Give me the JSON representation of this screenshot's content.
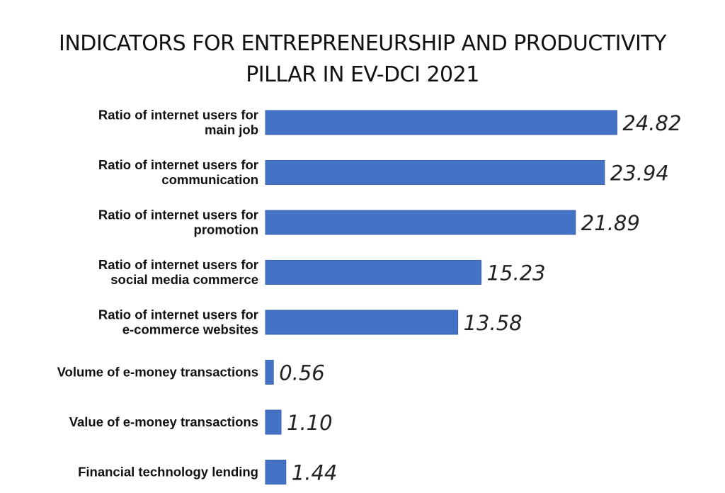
{
  "chart_data": {
    "type": "bar",
    "orientation": "horizontal",
    "title": "INDICATORS FOR ENTREPRENEURSHIP AND PRODUCTIVITY PILLAR IN EV-DCI 2021",
    "title_lines": [
      "INDICATORS FOR ENTREPRENEURSHIP AND PRODUCTIVITY",
      "PILLAR IN EV-DCI 2021"
    ],
    "categories": [
      [
        "Ratio of internet users for",
        "main job"
      ],
      [
        "Ratio of internet users for",
        "communication"
      ],
      [
        "Ratio of internet users for",
        "promotion"
      ],
      [
        "Ratio of internet users for",
        "social media commerce"
      ],
      [
        "Ratio of internet users for",
        "e-commerce websites"
      ],
      [
        "Volume of e-money transactions"
      ],
      [
        "Value of e-money transactions"
      ],
      [
        "Financial technology lending"
      ]
    ],
    "values": [
      24.82,
      23.94,
      21.89,
      15.23,
      13.58,
      0.56,
      1.1,
      1.44
    ],
    "value_labels": [
      "24.82",
      "23.94",
      "21.89",
      "15.23",
      "13.58",
      "0.56",
      "1.10",
      "1.44"
    ],
    "xlim": [
      0,
      25
    ],
    "grid": false,
    "legend": "none",
    "xlabel": "",
    "ylabel": "",
    "bar_color": "#4472c4"
  }
}
